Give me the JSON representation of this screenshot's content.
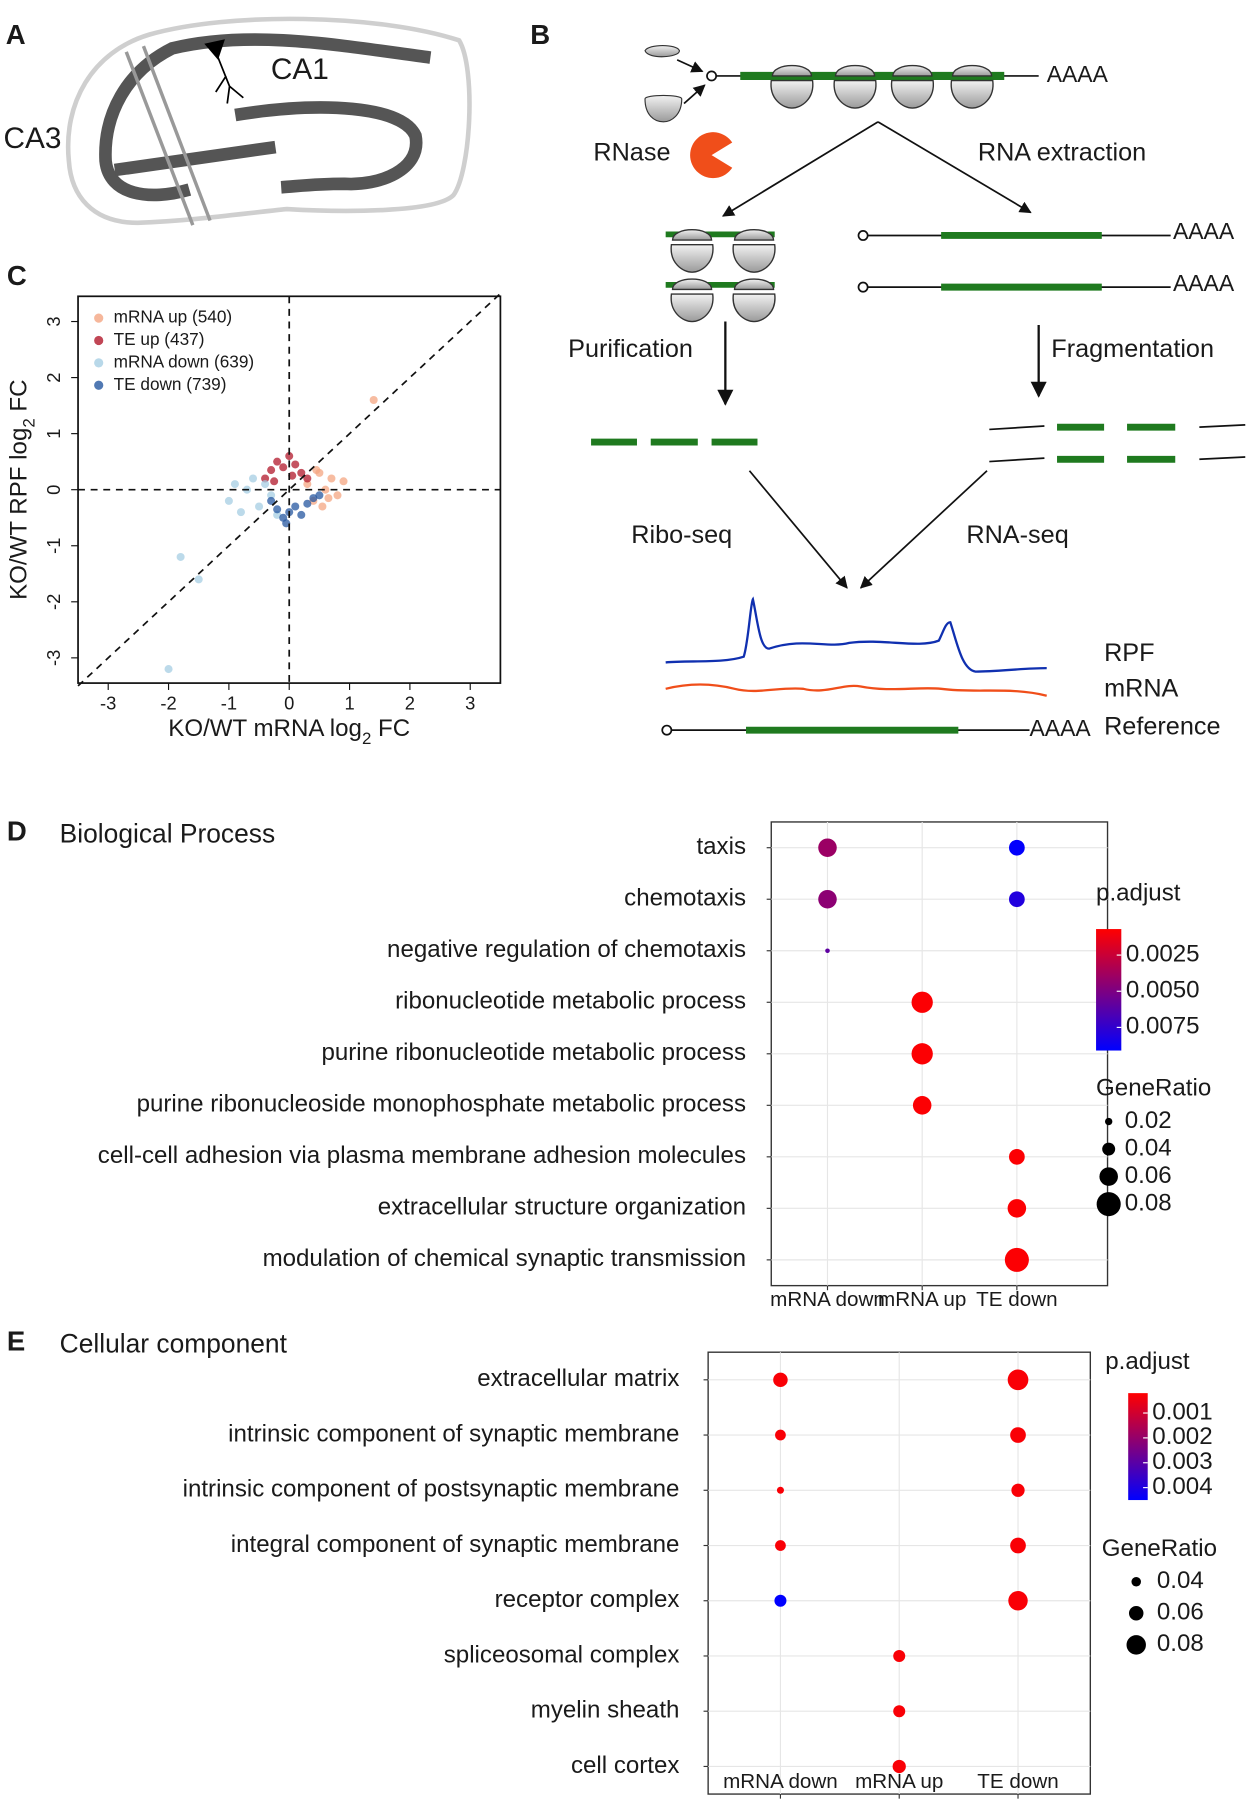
{
  "diagram_a": {
    "panel_label": "A",
    "labels": [
      "CA1",
      "CA3"
    ]
  },
  "diagram_b": {
    "panel_label": "B",
    "rnase": "RNase",
    "rna_extraction": "RNA extraction",
    "purification": "Purification",
    "fragmentation": "Fragmentation",
    "ribo_seq": "Ribo-seq",
    "rna_seq": "RNA-seq",
    "tracks": [
      "RPF",
      "mRNA",
      "Reference"
    ],
    "aaaa_labels": [
      "AAAA",
      "AAAA",
      "AAAA",
      "AAAA"
    ]
  },
  "chart_data": [
    {
      "type": "scatter",
      "panel_label": "C",
      "xlabel": [
        "KO/WT mRNA log",
        "2",
        " FC"
      ],
      "ylabel": [
        "KO/WT RPF log",
        "2",
        " FC"
      ],
      "xlim": [
        -3.5,
        3.5
      ],
      "ylim": [
        -3.45,
        3.45
      ],
      "xticks": [
        -3,
        -2,
        -1,
        0,
        1,
        2,
        3
      ],
      "yticks": [
        -3,
        -2,
        -1,
        0,
        1,
        2,
        3
      ],
      "series": [
        {
          "name": "mRNA up (540)",
          "color": "#f4a582",
          "x": [
            0.3,
            0.4,
            0.5,
            0.6,
            0.7,
            0.8,
            0.9,
            0.45,
            0.55,
            0.65,
            1.4
          ],
          "values": [
            0.1,
            -0.2,
            0.3,
            0.0,
            0.2,
            -0.1,
            0.15,
            0.35,
            -0.3,
            -0.15,
            1.6
          ]
        },
        {
          "name": "TE up (437)",
          "color": "#b2182b",
          "x": [
            -0.4,
            -0.3,
            -0.2,
            -0.1,
            0.0,
            0.1,
            0.2,
            0.3,
            -0.25,
            0.05
          ],
          "values": [
            0.2,
            0.35,
            0.5,
            0.4,
            0.6,
            0.45,
            0.3,
            0.2,
            0.15,
            0.25
          ]
        },
        {
          "name": "mRNA down (639)",
          "color": "#a6cee3",
          "x": [
            -1.0,
            -0.9,
            -0.8,
            -0.7,
            -0.6,
            -0.5,
            -0.4,
            -0.3,
            -0.2,
            -1.5,
            -2.0,
            -1.8
          ],
          "values": [
            -0.2,
            0.1,
            -0.4,
            0.0,
            0.2,
            -0.3,
            0.1,
            -0.1,
            -0.45,
            -1.6,
            -3.2,
            -1.2
          ]
        },
        {
          "name": "TE down (739)",
          "color": "#2557a0",
          "x": [
            -0.3,
            -0.2,
            -0.1,
            0.0,
            0.1,
            0.2,
            0.3,
            0.4,
            0.5,
            -0.05
          ],
          "values": [
            -0.2,
            -0.35,
            -0.5,
            -0.4,
            -0.3,
            -0.45,
            -0.25,
            -0.15,
            -0.1,
            -0.6
          ]
        }
      ]
    },
    {
      "type": "dot",
      "panel_label": "D",
      "title": "Biological Process",
      "categories": [
        "taxis",
        "chemotaxis",
        "negative regulation of chemotaxis",
        "ribonucleotide metabolic process",
        "purine ribonucleotide metabolic process",
        "purine ribonucleoside monophosphate metabolic process",
        "cell-cell adhesion via plasma membrane adhesion molecules",
        "extracellular structure organization",
        "modulation of chemical synaptic transmission"
      ],
      "x_categories": [
        "mRNA down",
        "mRNA up",
        "TE down"
      ],
      "points": [
        {
          "x": "mRNA down",
          "y": "taxis",
          "p_adjust": 0.004,
          "gene_ratio": 0.06
        },
        {
          "x": "TE down",
          "y": "taxis",
          "p_adjust": 0.009,
          "gene_ratio": 0.05
        },
        {
          "x": "mRNA down",
          "y": "chemotaxis",
          "p_adjust": 0.0045,
          "gene_ratio": 0.06
        },
        {
          "x": "TE down",
          "y": "chemotaxis",
          "p_adjust": 0.008,
          "gene_ratio": 0.05
        },
        {
          "x": "mRNA down",
          "y": "negative regulation of chemotaxis",
          "p_adjust": 0.006,
          "gene_ratio": 0.01
        },
        {
          "x": "mRNA up",
          "y": "ribonucleotide metabolic process",
          "p_adjust": 0.0008,
          "gene_ratio": 0.07
        },
        {
          "x": "mRNA up",
          "y": "purine ribonucleotide metabolic process",
          "p_adjust": 0.0008,
          "gene_ratio": 0.07
        },
        {
          "x": "mRNA up",
          "y": "purine ribonucleoside monophosphate metabolic process",
          "p_adjust": 0.0008,
          "gene_ratio": 0.06
        },
        {
          "x": "TE down",
          "y": "cell-cell adhesion via plasma membrane adhesion molecules",
          "p_adjust": 0.0008,
          "gene_ratio": 0.05
        },
        {
          "x": "TE down",
          "y": "extracellular structure organization",
          "p_adjust": 0.0008,
          "gene_ratio": 0.06
        },
        {
          "x": "TE down",
          "y": "modulation of chemical synaptic transmission",
          "p_adjust": 0.0008,
          "gene_ratio": 0.08
        }
      ],
      "color_title": "p.adjust",
      "colorlim": [
        0.0007,
        0.0091
      ],
      "color_low": "#ff0000",
      "color_high": "#0000ff",
      "color_ticks": [
        0.0025,
        {
          "value": 0.005,
          "label": "0.0050"
        },
        0.0075
      ],
      "size_title": "GeneRatio",
      "sizelim": [
        0.01,
        0.08
      ],
      "size_ticks": [
        0.02,
        0.04,
        0.06,
        0.08
      ]
    },
    {
      "type": "dot",
      "panel_label": "E",
      "title": "Cellular component",
      "categories": [
        "extracellular matrix",
        "intrinsic component of synaptic membrane",
        "intrinsic component of postsynaptic membrane",
        "integral component of synaptic membrane",
        "receptor complex",
        "spliceosomal complex",
        "myelin sheath",
        "cell cortex"
      ],
      "x_categories": [
        "mRNA down",
        "mRNA up",
        "TE down"
      ],
      "points": [
        {
          "x": "mRNA down",
          "y": "extracellular matrix",
          "p_adjust": 0.0003,
          "gene_ratio": 0.06
        },
        {
          "x": "TE down",
          "y": "extracellular matrix",
          "p_adjust": 0.0003,
          "gene_ratio": 0.085
        },
        {
          "x": "mRNA down",
          "y": "intrinsic component of synaptic membrane",
          "p_adjust": 0.0003,
          "gene_ratio": 0.045
        },
        {
          "x": "TE down",
          "y": "intrinsic component of synaptic membrane",
          "p_adjust": 0.0003,
          "gene_ratio": 0.065
        },
        {
          "x": "mRNA down",
          "y": "intrinsic component of postsynaptic membrane",
          "p_adjust": 0.0003,
          "gene_ratio": 0.03
        },
        {
          "x": "TE down",
          "y": "intrinsic component of postsynaptic membrane",
          "p_adjust": 0.0003,
          "gene_ratio": 0.055
        },
        {
          "x": "mRNA down",
          "y": "integral component of synaptic membrane",
          "p_adjust": 0.0003,
          "gene_ratio": 0.045
        },
        {
          "x": "TE down",
          "y": "integral component of synaptic membrane",
          "p_adjust": 0.0003,
          "gene_ratio": 0.065
        },
        {
          "x": "mRNA down",
          "y": "receptor complex",
          "p_adjust": 0.0045,
          "gene_ratio": 0.05
        },
        {
          "x": "TE down",
          "y": "receptor complex",
          "p_adjust": 0.0003,
          "gene_ratio": 0.08
        },
        {
          "x": "mRNA up",
          "y": "spliceosomal complex",
          "p_adjust": 0.0003,
          "gene_ratio": 0.05
        },
        {
          "x": "mRNA up",
          "y": "myelin sheath",
          "p_adjust": 0.0003,
          "gene_ratio": 0.05
        },
        {
          "x": "mRNA up",
          "y": "cell cortex",
          "p_adjust": 0.0003,
          "gene_ratio": 0.055
        }
      ],
      "color_title": "p.adjust",
      "colorlim": [
        0.0002,
        0.0045
      ],
      "color_low": "#ff0000",
      "color_high": "#0000ff",
      "color_ticks": [
        0.001,
        0.002,
        0.003,
        0.004
      ],
      "size_title": "GeneRatio",
      "sizelim": [
        0.02,
        0.085
      ],
      "size_ticks": [
        0.04,
        0.06,
        0.08
      ]
    }
  ]
}
